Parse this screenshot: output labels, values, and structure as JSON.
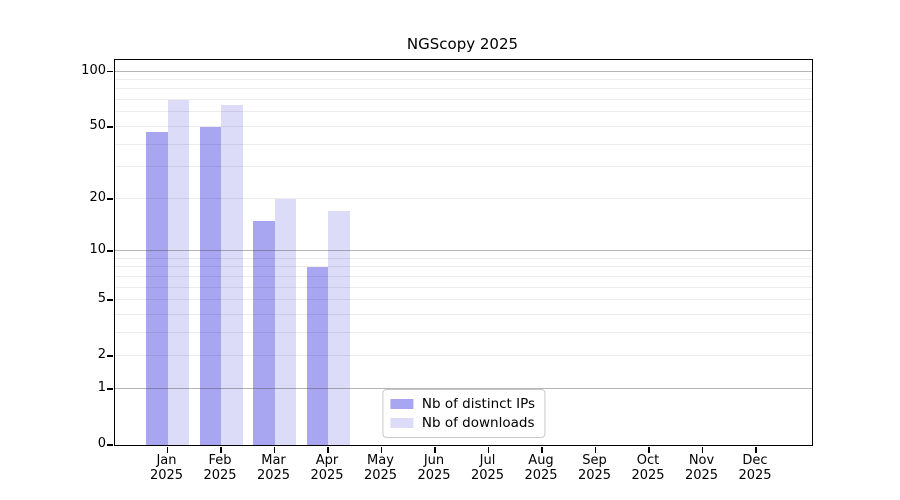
{
  "chart_data": {
    "type": "bar",
    "title": "NGScopy 2025",
    "year": "2025",
    "categories": [
      "Jan",
      "Feb",
      "Mar",
      "Apr",
      "May",
      "Jun",
      "Jul",
      "Aug",
      "Sep",
      "Oct",
      "Nov",
      "Dec"
    ],
    "series": [
      {
        "name": "Nb of distinct IPs",
        "color": "#a9a6f1",
        "values": [
          47,
          50,
          15,
          8,
          0,
          0,
          0,
          0,
          0,
          0,
          0,
          0
        ]
      },
      {
        "name": "Nb of downloads",
        "color": "#dcdcf9",
        "values": [
          70,
          66,
          20,
          17,
          0,
          0,
          0,
          0,
          0,
          0,
          0,
          0
        ]
      }
    ],
    "xlabel": "",
    "ylabel": "",
    "y_scale": "log1p",
    "y_ticks": [
      0,
      1,
      2,
      5,
      10,
      20,
      50,
      100
    ],
    "ylim": [
      0,
      116
    ],
    "grid": true,
    "legend_position": "lower center"
  }
}
